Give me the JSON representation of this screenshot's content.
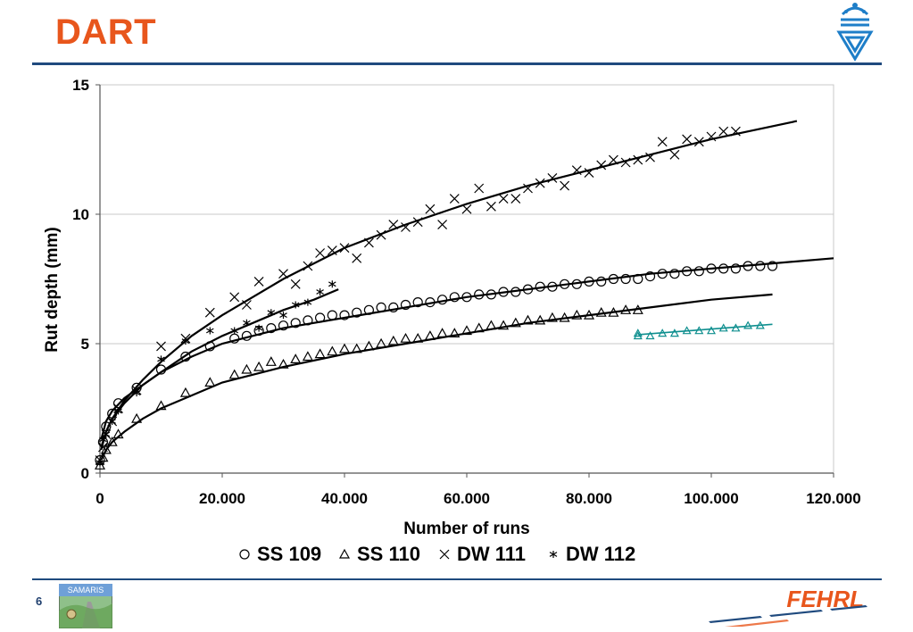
{
  "slide": {
    "title": "DART",
    "page_number": "6",
    "samaris_logo_text": "SAMARIS",
    "fehrl_logo_text": "FEHRL"
  },
  "colors": {
    "title": "#e8561c",
    "rule": "#1f4a7e",
    "crest": "#1e7ec8",
    "series_main": "#000000",
    "series_ss110_late": "#0f8f8f",
    "fehrl_text": "#e8561c",
    "fehrl_stripe": "#1f4a7e"
  },
  "chart_data": {
    "type": "scatter",
    "xlabel": "Number of runs",
    "ylabel": "Rut depth (mm)",
    "xlim": [
      0,
      120000
    ],
    "ylim": [
      0,
      15
    ],
    "x_ticks": [
      0,
      20000,
      40000,
      60000,
      80000,
      100000,
      120000
    ],
    "x_tick_labels": [
      "0",
      "20.000",
      "40.000",
      "60.000",
      "80.000",
      "100.000",
      "120.000"
    ],
    "y_ticks": [
      0,
      5,
      10,
      15
    ],
    "y_tick_labels": [
      "0",
      "5",
      "10",
      "15"
    ],
    "grid": "horizontal",
    "legend_position": "bottom",
    "series": [
      {
        "name": "SS 109",
        "marker": "circle",
        "marker_symbol": "○",
        "color": "#000000",
        "points": [
          [
            0,
            0.5
          ],
          [
            500,
            1.2
          ],
          [
            1000,
            1.8
          ],
          [
            2000,
            2.3
          ],
          [
            3000,
            2.7
          ],
          [
            6000,
            3.3
          ],
          [
            10000,
            4.0
          ],
          [
            14000,
            4.5
          ],
          [
            18000,
            4.9
          ],
          [
            22000,
            5.2
          ],
          [
            24000,
            5.3
          ],
          [
            26000,
            5.5
          ],
          [
            28000,
            5.6
          ],
          [
            30000,
            5.7
          ],
          [
            32000,
            5.8
          ],
          [
            34000,
            5.9
          ],
          [
            36000,
            6.0
          ],
          [
            38000,
            6.1
          ],
          [
            40000,
            6.1
          ],
          [
            42000,
            6.2
          ],
          [
            44000,
            6.3
          ],
          [
            46000,
            6.4
          ],
          [
            48000,
            6.4
          ],
          [
            50000,
            6.5
          ],
          [
            52000,
            6.6
          ],
          [
            54000,
            6.6
          ],
          [
            56000,
            6.7
          ],
          [
            58000,
            6.8
          ],
          [
            60000,
            6.8
          ],
          [
            62000,
            6.9
          ],
          [
            64000,
            6.9
          ],
          [
            66000,
            7.0
          ],
          [
            68000,
            7.0
          ],
          [
            70000,
            7.1
          ],
          [
            72000,
            7.2
          ],
          [
            74000,
            7.2
          ],
          [
            76000,
            7.3
          ],
          [
            78000,
            7.3
          ],
          [
            80000,
            7.4
          ],
          [
            82000,
            7.4
          ],
          [
            84000,
            7.5
          ],
          [
            86000,
            7.5
          ],
          [
            88000,
            7.5
          ],
          [
            90000,
            7.6
          ],
          [
            92000,
            7.7
          ],
          [
            94000,
            7.7
          ],
          [
            96000,
            7.8
          ],
          [
            98000,
            7.8
          ],
          [
            100000,
            7.9
          ],
          [
            102000,
            7.9
          ],
          [
            104000,
            7.9
          ],
          [
            106000,
            8.0
          ],
          [
            108000,
            8.0
          ],
          [
            110000,
            8.0
          ]
        ],
        "trend": [
          [
            200,
            1.3
          ],
          [
            1000,
            2.0
          ],
          [
            2000,
            2.4
          ],
          [
            4000,
            2.9
          ],
          [
            7000,
            3.4
          ],
          [
            10000,
            3.9
          ],
          [
            15000,
            4.5
          ],
          [
            20000,
            5.0
          ],
          [
            30000,
            5.6
          ],
          [
            40000,
            6.0
          ],
          [
            50000,
            6.4
          ],
          [
            60000,
            6.8
          ],
          [
            70000,
            7.1
          ],
          [
            80000,
            7.4
          ],
          [
            90000,
            7.7
          ],
          [
            100000,
            7.9
          ],
          [
            110000,
            8.1
          ],
          [
            120000,
            8.3
          ]
        ]
      },
      {
        "name": "SS 110",
        "marker": "triangle",
        "marker_symbol": "△",
        "color": "#000000",
        "points": [
          [
            0,
            0.3
          ],
          [
            500,
            0.6
          ],
          [
            1000,
            0.9
          ],
          [
            2000,
            1.2
          ],
          [
            3000,
            1.5
          ],
          [
            6000,
            2.1
          ],
          [
            10000,
            2.6
          ],
          [
            14000,
            3.1
          ],
          [
            18000,
            3.5
          ],
          [
            22000,
            3.8
          ],
          [
            24000,
            4.0
          ],
          [
            26000,
            4.1
          ],
          [
            28000,
            4.3
          ],
          [
            30000,
            4.2
          ],
          [
            32000,
            4.4
          ],
          [
            34000,
            4.5
          ],
          [
            36000,
            4.6
          ],
          [
            38000,
            4.7
          ],
          [
            40000,
            4.8
          ],
          [
            42000,
            4.8
          ],
          [
            44000,
            4.9
          ],
          [
            46000,
            5.0
          ],
          [
            48000,
            5.1
          ],
          [
            50000,
            5.2
          ],
          [
            52000,
            5.2
          ],
          [
            54000,
            5.3
          ],
          [
            56000,
            5.4
          ],
          [
            58000,
            5.4
          ],
          [
            60000,
            5.5
          ],
          [
            62000,
            5.6
          ],
          [
            64000,
            5.7
          ],
          [
            66000,
            5.7
          ],
          [
            68000,
            5.8
          ],
          [
            70000,
            5.9
          ],
          [
            72000,
            5.9
          ],
          [
            74000,
            6.0
          ],
          [
            76000,
            6.0
          ],
          [
            78000,
            6.1
          ],
          [
            80000,
            6.1
          ],
          [
            82000,
            6.2
          ],
          [
            84000,
            6.2
          ],
          [
            86000,
            6.3
          ],
          [
            88000,
            6.3
          ]
        ],
        "trend": [
          [
            200,
            0.5
          ],
          [
            1000,
            0.9
          ],
          [
            2000,
            1.2
          ],
          [
            4000,
            1.6
          ],
          [
            7000,
            2.1
          ],
          [
            10000,
            2.5
          ],
          [
            15000,
            3.0
          ],
          [
            20000,
            3.5
          ],
          [
            30000,
            4.1
          ],
          [
            40000,
            4.6
          ],
          [
            50000,
            5.0
          ],
          [
            60000,
            5.4
          ],
          [
            70000,
            5.8
          ],
          [
            80000,
            6.1
          ],
          [
            90000,
            6.4
          ],
          [
            100000,
            6.7
          ],
          [
            110000,
            6.9
          ]
        ]
      },
      {
        "name": "",
        "marker": "triangle",
        "color": "#0f8f8f",
        "points": [
          [
            88000,
            5.4
          ],
          [
            88000,
            5.3
          ],
          [
            90000,
            5.3
          ],
          [
            92000,
            5.4
          ],
          [
            94000,
            5.4
          ],
          [
            96000,
            5.5
          ],
          [
            98000,
            5.5
          ],
          [
            100000,
            5.5
          ],
          [
            102000,
            5.6
          ],
          [
            104000,
            5.6
          ],
          [
            106000,
            5.7
          ],
          [
            108000,
            5.7
          ]
        ],
        "trend": [
          [
            88000,
            5.35
          ],
          [
            110000,
            5.75
          ]
        ]
      },
      {
        "name": "DW 111",
        "marker": "x",
        "marker_symbol": "×",
        "color": "#000000",
        "points": [
          [
            0,
            0.5
          ],
          [
            500,
            1.0
          ],
          [
            1000,
            1.5
          ],
          [
            2000,
            2.0
          ],
          [
            3000,
            2.5
          ],
          [
            6000,
            3.2
          ],
          [
            10000,
            4.9
          ],
          [
            14000,
            5.2
          ],
          [
            18000,
            6.2
          ],
          [
            22000,
            6.8
          ],
          [
            24000,
            6.5
          ],
          [
            26000,
            7.4
          ],
          [
            30000,
            7.7
          ],
          [
            32000,
            7.3
          ],
          [
            34000,
            8.0
          ],
          [
            36000,
            8.5
          ],
          [
            38000,
            8.6
          ],
          [
            40000,
            8.7
          ],
          [
            42000,
            8.3
          ],
          [
            44000,
            8.9
          ],
          [
            46000,
            9.2
          ],
          [
            48000,
            9.6
          ],
          [
            50000,
            9.5
          ],
          [
            52000,
            9.7
          ],
          [
            54000,
            10.2
          ],
          [
            56000,
            9.6
          ],
          [
            58000,
            10.6
          ],
          [
            60000,
            10.2
          ],
          [
            62000,
            11.0
          ],
          [
            64000,
            10.3
          ],
          [
            66000,
            10.6
          ],
          [
            68000,
            10.6
          ],
          [
            70000,
            11.0
          ],
          [
            72000,
            11.2
          ],
          [
            74000,
            11.4
          ],
          [
            76000,
            11.1
          ],
          [
            78000,
            11.7
          ],
          [
            80000,
            11.6
          ],
          [
            82000,
            11.9
          ],
          [
            84000,
            12.1
          ],
          [
            86000,
            12.0
          ],
          [
            88000,
            12.1
          ],
          [
            90000,
            12.2
          ],
          [
            92000,
            12.8
          ],
          [
            94000,
            12.3
          ],
          [
            96000,
            12.9
          ],
          [
            98000,
            12.8
          ],
          [
            100000,
            13.0
          ],
          [
            102000,
            13.2
          ],
          [
            104000,
            13.2
          ]
        ],
        "trend": [
          [
            200,
            1.0
          ],
          [
            1000,
            1.6
          ],
          [
            2000,
            2.1
          ],
          [
            4000,
            2.8
          ],
          [
            7000,
            3.6
          ],
          [
            10000,
            4.3
          ],
          [
            15000,
            5.3
          ],
          [
            20000,
            6.1
          ],
          [
            30000,
            7.5
          ],
          [
            40000,
            8.7
          ],
          [
            50000,
            9.6
          ],
          [
            60000,
            10.4
          ],
          [
            70000,
            11.1
          ],
          [
            80000,
            11.7
          ],
          [
            90000,
            12.3
          ],
          [
            100000,
            12.9
          ],
          [
            114000,
            13.6
          ]
        ]
      },
      {
        "name": "DW 112",
        "marker": "asterisk",
        "marker_symbol": "⁎",
        "color": "#000000",
        "points": [
          [
            0,
            0.4
          ],
          [
            500,
            1.3
          ],
          [
            1000,
            1.5
          ],
          [
            2000,
            2.0
          ],
          [
            3000,
            2.4
          ],
          [
            6000,
            3.1
          ],
          [
            10000,
            4.4
          ],
          [
            14000,
            5.1
          ],
          [
            18000,
            5.5
          ],
          [
            22000,
            5.5
          ],
          [
            24000,
            5.8
          ],
          [
            26000,
            5.6
          ],
          [
            28000,
            6.2
          ],
          [
            30000,
            6.1
          ],
          [
            32000,
            6.5
          ],
          [
            34000,
            6.6
          ],
          [
            36000,
            7.0
          ],
          [
            38000,
            7.3
          ]
        ],
        "trend": [
          [
            200,
            0.9
          ],
          [
            1000,
            1.6
          ],
          [
            2000,
            2.1
          ],
          [
            4000,
            2.7
          ],
          [
            7000,
            3.4
          ],
          [
            10000,
            3.9
          ],
          [
            15000,
            4.7
          ],
          [
            20000,
            5.3
          ],
          [
            25000,
            5.8
          ],
          [
            30000,
            6.3
          ],
          [
            35000,
            6.7
          ],
          [
            39000,
            7.1
          ]
        ]
      }
    ]
  }
}
